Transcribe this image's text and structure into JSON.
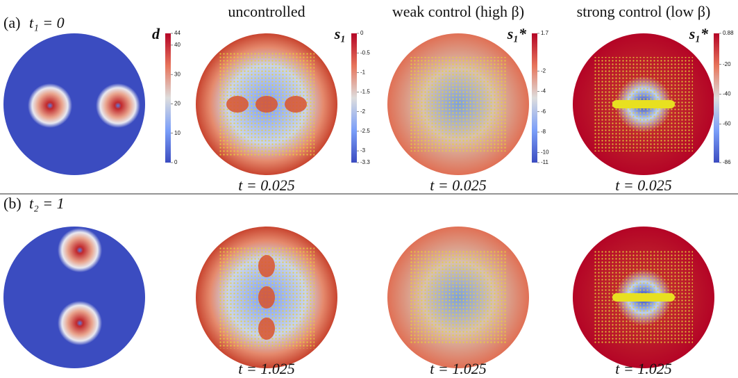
{
  "columns": [
    "uncontrolled",
    "weak control (high β)",
    "strong control (low β)"
  ],
  "colorbars": [
    {
      "label": "d",
      "ticks": [
        "44",
        "40",
        "30",
        "20",
        "10",
        "0"
      ]
    },
    {
      "label": "s₁",
      "ticks": [
        "0",
        "-0.5",
        "-1",
        "-1.5",
        "-2",
        "-2.5",
        "-3",
        "-3.3"
      ]
    },
    {
      "label": "s₁*",
      "ticks": [
        "1.7",
        "-2",
        "-4",
        "-6",
        "-8",
        "-10",
        "-11"
      ]
    },
    {
      "label": "s₁*",
      "ticks": [
        "0.88",
        "-20",
        "-40",
        "-60",
        "-86"
      ]
    }
  ],
  "rows": [
    {
      "label": "(a)",
      "time": "t₁ = 0",
      "panel_times": [
        "t = 0.025",
        "t = 0.025",
        "t = 0.025"
      ]
    },
    {
      "label": "(b)",
      "time": "t₂ = 1",
      "panel_times": [
        "t = 1.025",
        "t = 1.025",
        "t = 1.025"
      ]
    }
  ]
}
